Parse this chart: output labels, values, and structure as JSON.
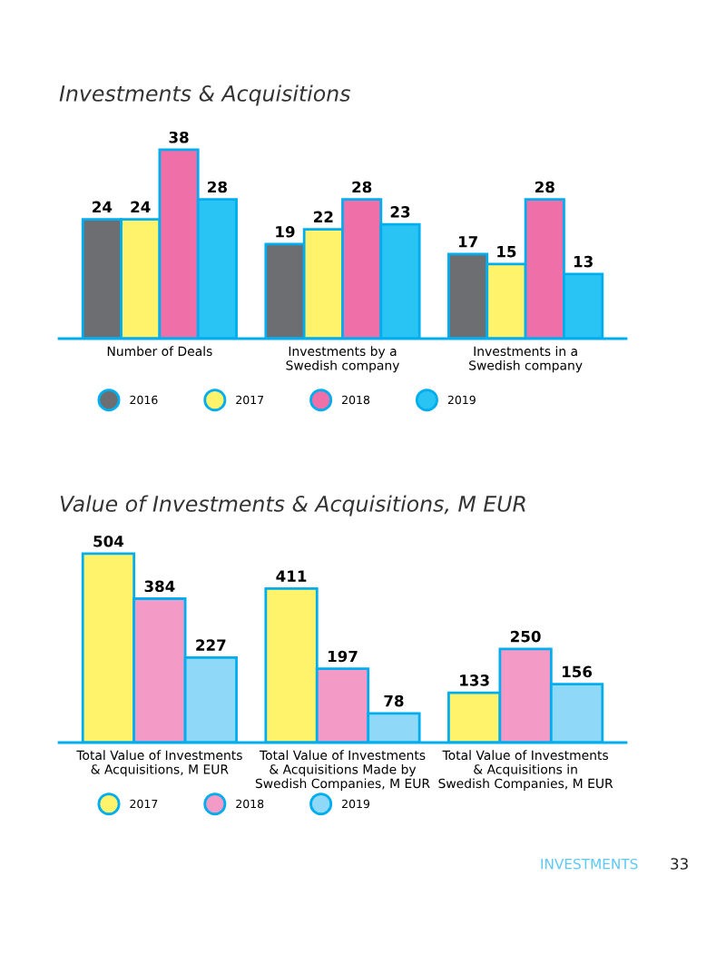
{
  "chart_data": [
    {
      "type": "bar",
      "title": "Investments & Acquisitions",
      "categories": [
        "Number of Deals",
        "Investments by a\nSwedish company",
        "Investments in a\nSwedish company"
      ],
      "series": [
        {
          "name": "2016",
          "color": "#6d6e71",
          "values": [
            24,
            19,
            17
          ]
        },
        {
          "name": "2017",
          "color": "#fff36b",
          "values": [
            24,
            22,
            15
          ]
        },
        {
          "name": "2018",
          "color": "#ef6fa8",
          "values": [
            38,
            28,
            28
          ]
        },
        {
          "name": "2019",
          "color": "#29c4f4",
          "values": [
            28,
            23,
            13
          ]
        }
      ],
      "data_labels": true,
      "legend": "bottom",
      "grid": false
    },
    {
      "type": "bar",
      "title": "Value of Investments & Acquisitions, M EUR",
      "categories": [
        "Total Value of Investments\n& Acquisitions, M EUR",
        "Total Value of Investments\n& Acquisitions Made by\nSwedish Companies, M EUR",
        "Total Value of Investments\n& Acquisitions in\nSwedish Companies, M EUR"
      ],
      "series": [
        {
          "name": "2017",
          "color": "#fff36b",
          "values": [
            504,
            411,
            133
          ]
        },
        {
          "name": "2018",
          "color": "#f49ac6",
          "values": [
            384,
            197,
            250
          ]
        },
        {
          "name": "2019",
          "color": "#8fd8f7",
          "values": [
            227,
            78,
            156
          ]
        }
      ],
      "data_labels": true,
      "legend": "bottom",
      "grid": false,
      "annotations": [
        "INVESTMENTS",
        "33"
      ]
    }
  ]
}
